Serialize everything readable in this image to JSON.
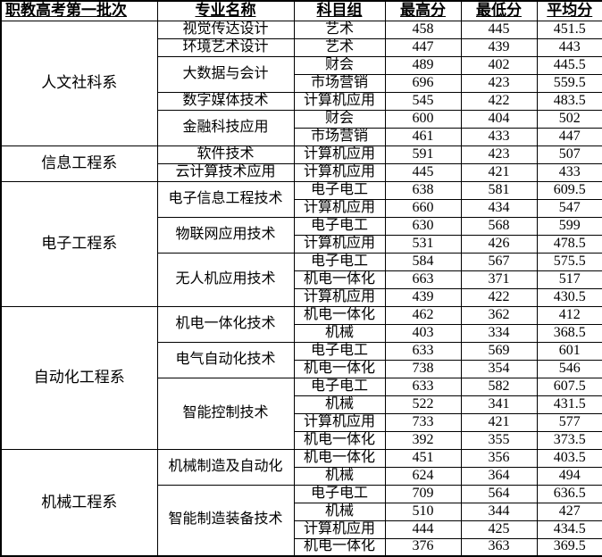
{
  "table": {
    "headers": {
      "batch": "职教高考第一批次",
      "major": "专业名称",
      "subject_group": "科目组",
      "max_score": "最高分",
      "min_score": "最低分",
      "avg_score": "平均分"
    },
    "colors": {
      "text": "#000000",
      "border": "#000000",
      "background": "#ffffff"
    },
    "departments": [
      {
        "name": "人文社科系",
        "majors": [
          {
            "name": "视觉传达设计",
            "rows": [
              {
                "group": "艺术",
                "max": "458",
                "min": "445",
                "avg": "451.5"
              }
            ]
          },
          {
            "name": "环境艺术设计",
            "rows": [
              {
                "group": "艺术",
                "max": "447",
                "min": "439",
                "avg": "443"
              }
            ]
          },
          {
            "name": "大数据与会计",
            "rows": [
              {
                "group": "财会",
                "max": "489",
                "min": "402",
                "avg": "445.5"
              },
              {
                "group": "市场营销",
                "max": "696",
                "min": "423",
                "avg": "559.5"
              }
            ]
          },
          {
            "name": "数字媒体技术",
            "rows": [
              {
                "group": "计算机应用",
                "max": "545",
                "min": "422",
                "avg": "483.5"
              }
            ]
          },
          {
            "name": "金融科技应用",
            "rows": [
              {
                "group": "财会",
                "max": "600",
                "min": "404",
                "avg": "502"
              },
              {
                "group": "市场营销",
                "max": "461",
                "min": "433",
                "avg": "447"
              }
            ]
          }
        ]
      },
      {
        "name": "信息工程系",
        "majors": [
          {
            "name": "软件技术",
            "rows": [
              {
                "group": "计算机应用",
                "max": "591",
                "min": "423",
                "avg": "507"
              }
            ]
          },
          {
            "name": "云计算技术应用",
            "rows": [
              {
                "group": "计算机应用",
                "max": "445",
                "min": "421",
                "avg": "433"
              }
            ]
          }
        ]
      },
      {
        "name": "电子工程系",
        "majors": [
          {
            "name": "电子信息工程技术",
            "rows": [
              {
                "group": "电子电工",
                "max": "638",
                "min": "581",
                "avg": "609.5"
              },
              {
                "group": "计算机应用",
                "max": "660",
                "min": "434",
                "avg": "547"
              }
            ]
          },
          {
            "name": "物联网应用技术",
            "rows": [
              {
                "group": "电子电工",
                "max": "630",
                "min": "568",
                "avg": "599"
              },
              {
                "group": "计算机应用",
                "max": "531",
                "min": "426",
                "avg": "478.5"
              }
            ]
          },
          {
            "name": "无人机应用技术",
            "rows": [
              {
                "group": "电子电工",
                "max": "584",
                "min": "567",
                "avg": "575.5"
              },
              {
                "group": "机电一体化",
                "max": "663",
                "min": "371",
                "avg": "517"
              },
              {
                "group": "计算机应用",
                "max": "439",
                "min": "422",
                "avg": "430.5"
              }
            ]
          }
        ]
      },
      {
        "name": "自动化工程系",
        "majors": [
          {
            "name": "机电一体化技术",
            "rows": [
              {
                "group": "机电一体化",
                "max": "462",
                "min": "362",
                "avg": "412"
              },
              {
                "group": "机械",
                "max": "403",
                "min": "334",
                "avg": "368.5"
              }
            ]
          },
          {
            "name": "电气自动化技术",
            "rows": [
              {
                "group": "电子电工",
                "max": "633",
                "min": "569",
                "avg": "601"
              },
              {
                "group": "机电一体化",
                "max": "738",
                "min": "354",
                "avg": "546"
              }
            ]
          },
          {
            "name": "智能控制技术",
            "rows": [
              {
                "group": "电子电工",
                "max": "633",
                "min": "582",
                "avg": "607.5"
              },
              {
                "group": "机械",
                "max": "522",
                "min": "341",
                "avg": "431.5"
              },
              {
                "group": "计算机应用",
                "max": "733",
                "min": "421",
                "avg": "577"
              },
              {
                "group": "机电一体化",
                "max": "392",
                "min": "355",
                "avg": "373.5"
              }
            ]
          }
        ]
      },
      {
        "name": "机械工程系",
        "majors": [
          {
            "name": "机械制造及自动化",
            "rows": [
              {
                "group": "机电一体化",
                "max": "451",
                "min": "356",
                "avg": "403.5"
              },
              {
                "group": "机械",
                "max": "624",
                "min": "364",
                "avg": "494"
              }
            ]
          },
          {
            "name": "智能制造装备技术",
            "rows": [
              {
                "group": "电子电工",
                "max": "709",
                "min": "564",
                "avg": "636.5"
              },
              {
                "group": "机械",
                "max": "510",
                "min": "344",
                "avg": "427"
              },
              {
                "group": "计算机应用",
                "max": "444",
                "min": "425",
                "avg": "434.5"
              },
              {
                "group": "机电一体化",
                "max": "376",
                "min": "363",
                "avg": "369.5"
              }
            ]
          }
        ]
      }
    ]
  }
}
